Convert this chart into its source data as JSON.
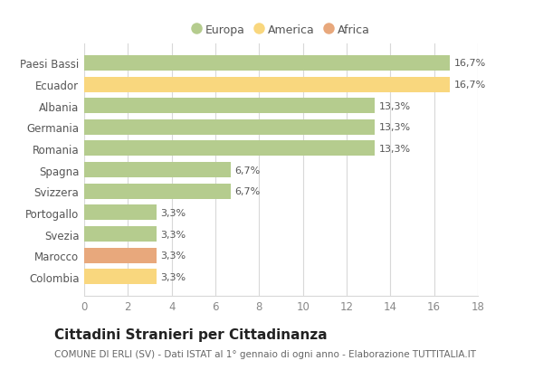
{
  "categories": [
    "Colombia",
    "Marocco",
    "Svezia",
    "Portogallo",
    "Svizzera",
    "Spagna",
    "Romania",
    "Germania",
    "Albania",
    "Ecuador",
    "Paesi Bassi"
  ],
  "values": [
    3.3,
    3.3,
    3.3,
    3.3,
    6.7,
    6.7,
    13.3,
    13.3,
    13.3,
    16.7,
    16.7
  ],
  "labels": [
    "3,3%",
    "3,3%",
    "3,3%",
    "3,3%",
    "6,7%",
    "6,7%",
    "13,3%",
    "13,3%",
    "13,3%",
    "16,7%",
    "16,7%"
  ],
  "colors": [
    "#f9d77e",
    "#e8a87c",
    "#b5cc8e",
    "#b5cc8e",
    "#b5cc8e",
    "#b5cc8e",
    "#b5cc8e",
    "#b5cc8e",
    "#b5cc8e",
    "#f9d77e",
    "#b5cc8e"
  ],
  "legend": [
    {
      "label": "Europa",
      "color": "#b5cc8e"
    },
    {
      "label": "America",
      "color": "#f9d77e"
    },
    {
      "label": "Africa",
      "color": "#e8a87c"
    }
  ],
  "xlim": [
    0,
    18
  ],
  "xticks": [
    0,
    2,
    4,
    6,
    8,
    10,
    12,
    14,
    16,
    18
  ],
  "title": "Cittadini Stranieri per Cittadinanza",
  "subtitle": "COMUNE DI ERLI (SV) - Dati ISTAT al 1° gennaio di ogni anno - Elaborazione TUTTITALIA.IT",
  "background_color": "#ffffff",
  "grid_color": "#d8d8d8",
  "bar_height": 0.72,
  "title_fontsize": 11,
  "subtitle_fontsize": 7.5,
  "label_fontsize": 8,
  "tick_fontsize": 8.5,
  "legend_fontsize": 9
}
